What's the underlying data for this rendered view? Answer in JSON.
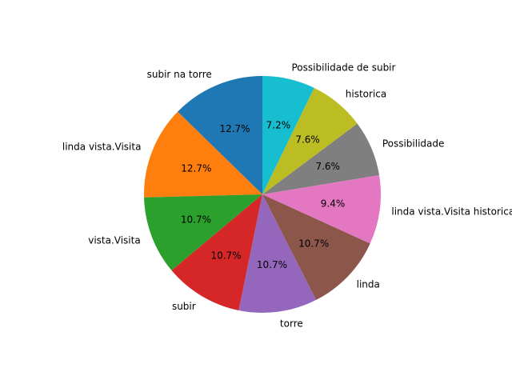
{
  "chart_data": {
    "type": "pie",
    "categories": [
      "subir na torre",
      "linda vista.Visita",
      "vista.Visita",
      "subir",
      "torre",
      "linda",
      "linda vista.Visita historica",
      "Possibilidade",
      "historica",
      "Possibilidade de subir"
    ],
    "values": [
      12.7,
      12.7,
      10.7,
      10.7,
      10.7,
      10.7,
      9.4,
      7.6,
      7.6,
      7.2
    ],
    "value_labels": [
      "12.7%",
      "12.7%",
      "10.7%",
      "10.7%",
      "10.7%",
      "10.7%",
      "9.4%",
      "7.6%",
      "7.6%",
      "7.2%"
    ],
    "colors": [
      "#1f77b4",
      "#ff7f0e",
      "#2ca02c",
      "#d62728",
      "#9467bd",
      "#8c564b",
      "#e377c2",
      "#7f7f7f",
      "#bcbd22",
      "#17becf"
    ],
    "start_angle_deg": 90,
    "direction": "counterclockwise",
    "title": ""
  }
}
